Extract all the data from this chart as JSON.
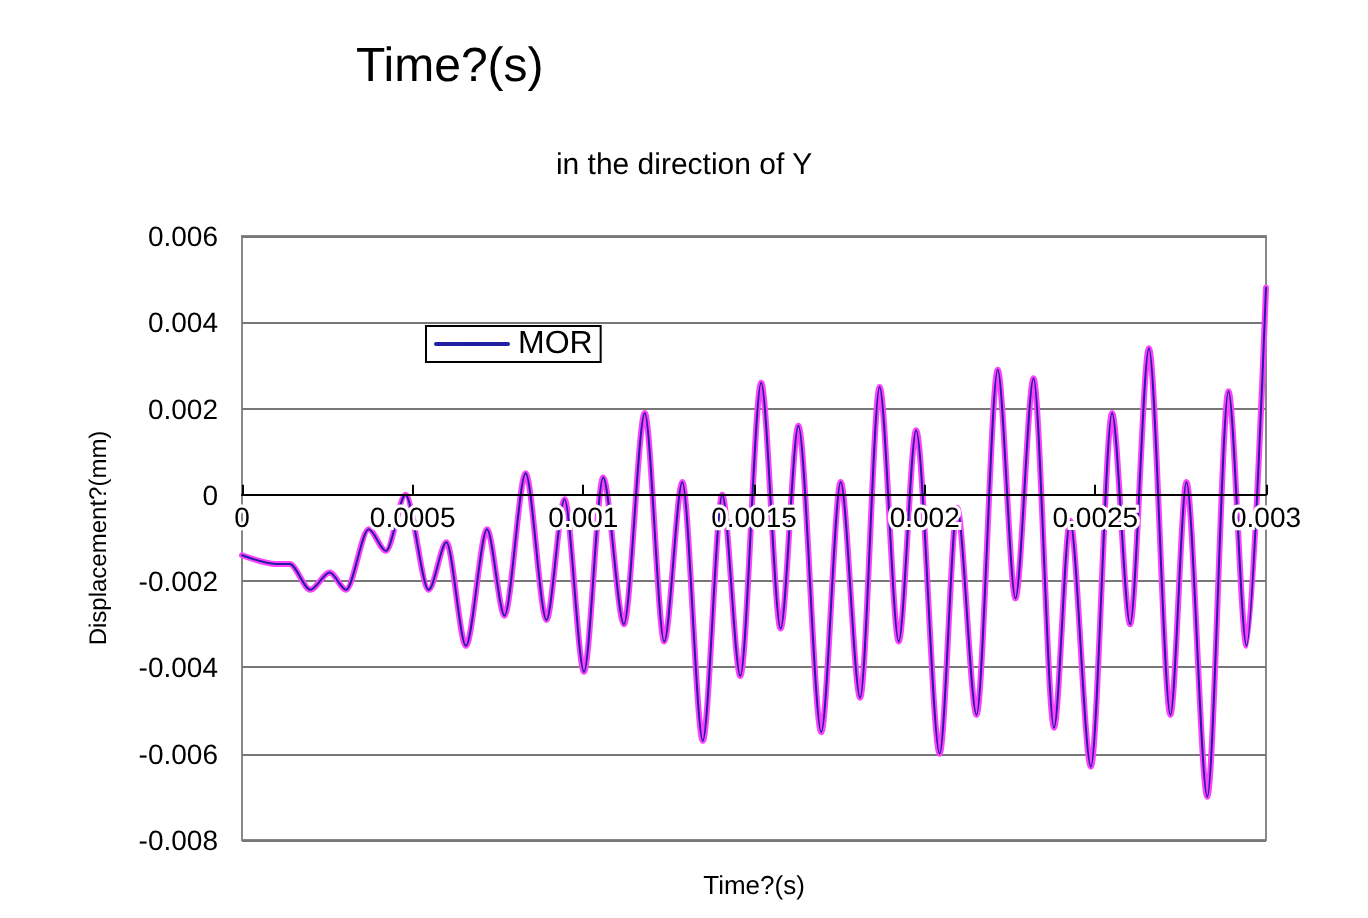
{
  "chart_data": {
    "type": "line",
    "title": "Time?(s)",
    "subtitle": "in the direction of Y",
    "xlabel": "Time?(s)",
    "ylabel": "Displacement?(mm)",
    "x": [
      0,
      0.0001,
      0.00014,
      0.0002,
      0.000257,
      0.000305,
      0.000371,
      0.000422,
      0.000479,
      0.000547,
      0.000599,
      0.000656,
      0.000718,
      0.000769,
      0.000831,
      0.000892,
      0.000945,
      0.001002,
      0.001058,
      0.001119,
      0.00118,
      0.001237,
      0.00129,
      0.00135,
      0.001407,
      0.00146,
      0.001521,
      0.001578,
      0.00163,
      0.001697,
      0.001754,
      0.001811,
      0.001868,
      0.001924,
      0.001975,
      0.002044,
      0.002095,
      0.002152,
      0.002214,
      0.002266,
      0.002319,
      0.002379,
      0.002426,
      0.002487,
      0.002549,
      0.002602,
      0.002657,
      0.00272,
      0.002767,
      0.002828,
      0.00289,
      0.002943,
      0.003
    ],
    "series": [
      {
        "name": "MOR",
        "color": "#2020a0",
        "values": [
          -0.0014,
          -0.0016,
          -0.0016,
          -0.0022,
          -0.0018,
          -0.0022,
          -0.0008,
          -0.0013,
          0.0,
          -0.0022,
          -0.0011,
          -0.0035,
          -0.0008,
          -0.0028,
          0.0005,
          -0.0029,
          -0.0001,
          -0.0041,
          0.0004,
          -0.003,
          0.0019,
          -0.0034,
          0.0003,
          -0.0057,
          0.0,
          -0.0042,
          0.0026,
          -0.0031,
          0.0016,
          -0.0055,
          0.0003,
          -0.0047,
          0.0025,
          -0.0034,
          0.0015,
          -0.006,
          -0.0003,
          -0.0051,
          0.0029,
          -0.0024,
          0.0027,
          -0.0054,
          -0.0006,
          -0.0063,
          0.0019,
          -0.003,
          0.0034,
          -0.0051,
          0.0003,
          -0.007,
          0.0024,
          -0.0035,
          0.0048
        ]
      },
      {
        "color": "#ff40ff",
        "values": [
          -0.0014,
          -0.0016,
          -0.0016,
          -0.0022,
          -0.0018,
          -0.0022,
          -0.0008,
          -0.0013,
          0.0,
          -0.0022,
          -0.0011,
          -0.0035,
          -0.0008,
          -0.0028,
          0.0005,
          -0.0029,
          -0.0001,
          -0.0041,
          0.0004,
          -0.003,
          0.0019,
          -0.0034,
          0.0003,
          -0.0057,
          0.0,
          -0.0042,
          0.0026,
          -0.0031,
          0.0016,
          -0.0055,
          0.0003,
          -0.0047,
          0.0025,
          -0.0034,
          0.0015,
          -0.006,
          -0.0003,
          -0.0051,
          0.0029,
          -0.0024,
          0.0027,
          -0.0054,
          -0.0006,
          -0.0063,
          0.0019,
          -0.003,
          0.0034,
          -0.0051,
          0.0003,
          -0.007,
          0.0024,
          -0.0035,
          0.0048
        ]
      }
    ],
    "xlim": [
      0,
      0.003
    ],
    "xticks": [
      0,
      0.0005,
      0.001,
      0.0015,
      0.002,
      0.0025,
      0.003
    ],
    "ylim": [
      -0.008,
      0.006
    ],
    "yticks": [
      -0.008,
      -0.006,
      -0.004,
      -0.002,
      0,
      0.002,
      0.004,
      0.006
    ],
    "grid": "y",
    "legend": "top",
    "marker": "none",
    "line_style": "solid"
  }
}
